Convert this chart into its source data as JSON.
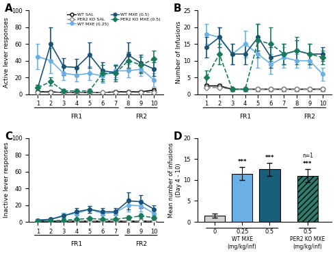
{
  "sessions": [
    1,
    2,
    3,
    4,
    5,
    6,
    7,
    8,
    9,
    10
  ],
  "panel_A": {
    "wt_sal_y": [
      3,
      3,
      2,
      2,
      2,
      2,
      3,
      3,
      3,
      5
    ],
    "wt_sal_err": [
      1,
      1,
      1,
      1,
      1,
      1,
      1,
      1,
      1,
      2
    ],
    "wt_025_y": [
      45,
      40,
      25,
      23,
      25,
      22,
      28,
      28,
      30,
      17
    ],
    "wt_025_err": [
      15,
      15,
      8,
      8,
      8,
      8,
      8,
      8,
      8,
      8
    ],
    "wt_05_y": [
      8,
      60,
      33,
      32,
      47,
      28,
      26,
      47,
      37,
      30
    ],
    "wt_05_err": [
      3,
      20,
      10,
      10,
      15,
      10,
      8,
      15,
      10,
      8
    ],
    "per2_sal_y": [
      2,
      2,
      2,
      2,
      2,
      2,
      2,
      2,
      2,
      2
    ],
    "per2_sal_err": [
      1,
      1,
      1,
      1,
      1,
      1,
      1,
      1,
      1,
      1
    ],
    "per2_05_y": [
      8,
      15,
      4,
      4,
      4,
      25,
      25,
      40,
      35,
      42
    ],
    "per2_05_err": [
      3,
      5,
      2,
      2,
      2,
      10,
      10,
      10,
      10,
      10
    ],
    "ylabel": "Active lever responses",
    "ylim": [
      0,
      100
    ]
  },
  "panel_B": {
    "wt_sal_y": [
      2.5,
      2.5,
      1.5,
      1.5,
      1.5,
      1.5,
      1.5,
      1.5,
      1.5,
      1.5
    ],
    "wt_sal_err": [
      0.5,
      0.5,
      0.5,
      0.5,
      0.5,
      0.5,
      0.5,
      0.5,
      0.5,
      0.5
    ],
    "wt_025_y": [
      18,
      17,
      12,
      15,
      12,
      9,
      11,
      10,
      10,
      6
    ],
    "wt_025_err": [
      3,
      3,
      3,
      4,
      4,
      3,
      3,
      2,
      2,
      2
    ],
    "wt_05_y": [
      14,
      17,
      12,
      12,
      17,
      11,
      12,
      13,
      12,
      12
    ],
    "wt_05_err": [
      3,
      3,
      3,
      3,
      4,
      3,
      3,
      3,
      3,
      2
    ],
    "per2_sal_y": [
      2,
      2,
      1.5,
      1.5,
      1.5,
      1.5,
      1.5,
      1.5,
      1.5,
      1.5
    ],
    "per2_sal_err": [
      0.5,
      0.5,
      0.5,
      0.5,
      0.5,
      0.5,
      0.5,
      0.5,
      0.5,
      0.5
    ],
    "per2_05_y": [
      5,
      12,
      1.5,
      1.5,
      16,
      15,
      12,
      13,
      12,
      11
    ],
    "per2_05_err": [
      2,
      3,
      0.5,
      0.5,
      5,
      5,
      3,
      4,
      3,
      2
    ],
    "ylabel": "Number of Infusions",
    "ylim": [
      0,
      25
    ]
  },
  "panel_C": {
    "wt_sal_y": [
      1,
      1,
      1,
      1,
      1,
      1,
      1,
      1,
      1,
      1
    ],
    "wt_sal_err": [
      0.5,
      0.5,
      0.5,
      0.5,
      0.5,
      0.5,
      0.5,
      0.5,
      0.5,
      0.5
    ],
    "wt_025_y": [
      2,
      3,
      8,
      10,
      15,
      10,
      11,
      20,
      19,
      10
    ],
    "wt_025_err": [
      1,
      1,
      3,
      3,
      4,
      3,
      3,
      8,
      7,
      4
    ],
    "wt_05_y": [
      2,
      3,
      7,
      12,
      15,
      12,
      12,
      25,
      24,
      15
    ],
    "wt_05_err": [
      1,
      1,
      3,
      4,
      4,
      4,
      4,
      10,
      8,
      5
    ],
    "per2_sal_y": [
      1,
      1,
      1,
      1,
      1,
      1,
      1,
      1,
      1,
      1
    ],
    "per2_sal_err": [
      0.3,
      0.3,
      0.3,
      0.3,
      0.3,
      0.3,
      0.3,
      0.3,
      0.3,
      0.3
    ],
    "per2_05_y": [
      1,
      1,
      2,
      3,
      4,
      3,
      3,
      5,
      7,
      5
    ],
    "per2_05_err": [
      0.5,
      0.5,
      1,
      1,
      2,
      1,
      1,
      2,
      3,
      2
    ],
    "ylabel": "Inactive lever responses",
    "ylim": [
      0,
      100
    ]
  },
  "panel_D": {
    "categories": [
      "0",
      "0.25",
      "0.5",
      "0.5"
    ],
    "values": [
      1.5,
      11.5,
      12.5,
      11.0
    ],
    "errors": [
      0.5,
      1.5,
      1.5,
      1.5
    ],
    "colors": [
      "#d3d3d3",
      "#6aafe6",
      "#1a5f7a",
      "#2e7d6e"
    ],
    "hatch": [
      "",
      "",
      "",
      "////"
    ],
    "ylabel": "Mean number of infusions\n(Day 4 - 10)",
    "ylim": [
      0,
      20
    ],
    "n1_label": "n=1",
    "significance": [
      "",
      "***",
      "***",
      "***"
    ]
  },
  "colors": {
    "wt_sal": "#000000",
    "wt_025": "#6aafe6",
    "wt_05": "#1a5276",
    "per2_sal": "#888888",
    "per2_05": "#1a7a5e"
  },
  "fr1_label": "FR1",
  "fr2_label": "FR2",
  "background_color": "#ffffff"
}
